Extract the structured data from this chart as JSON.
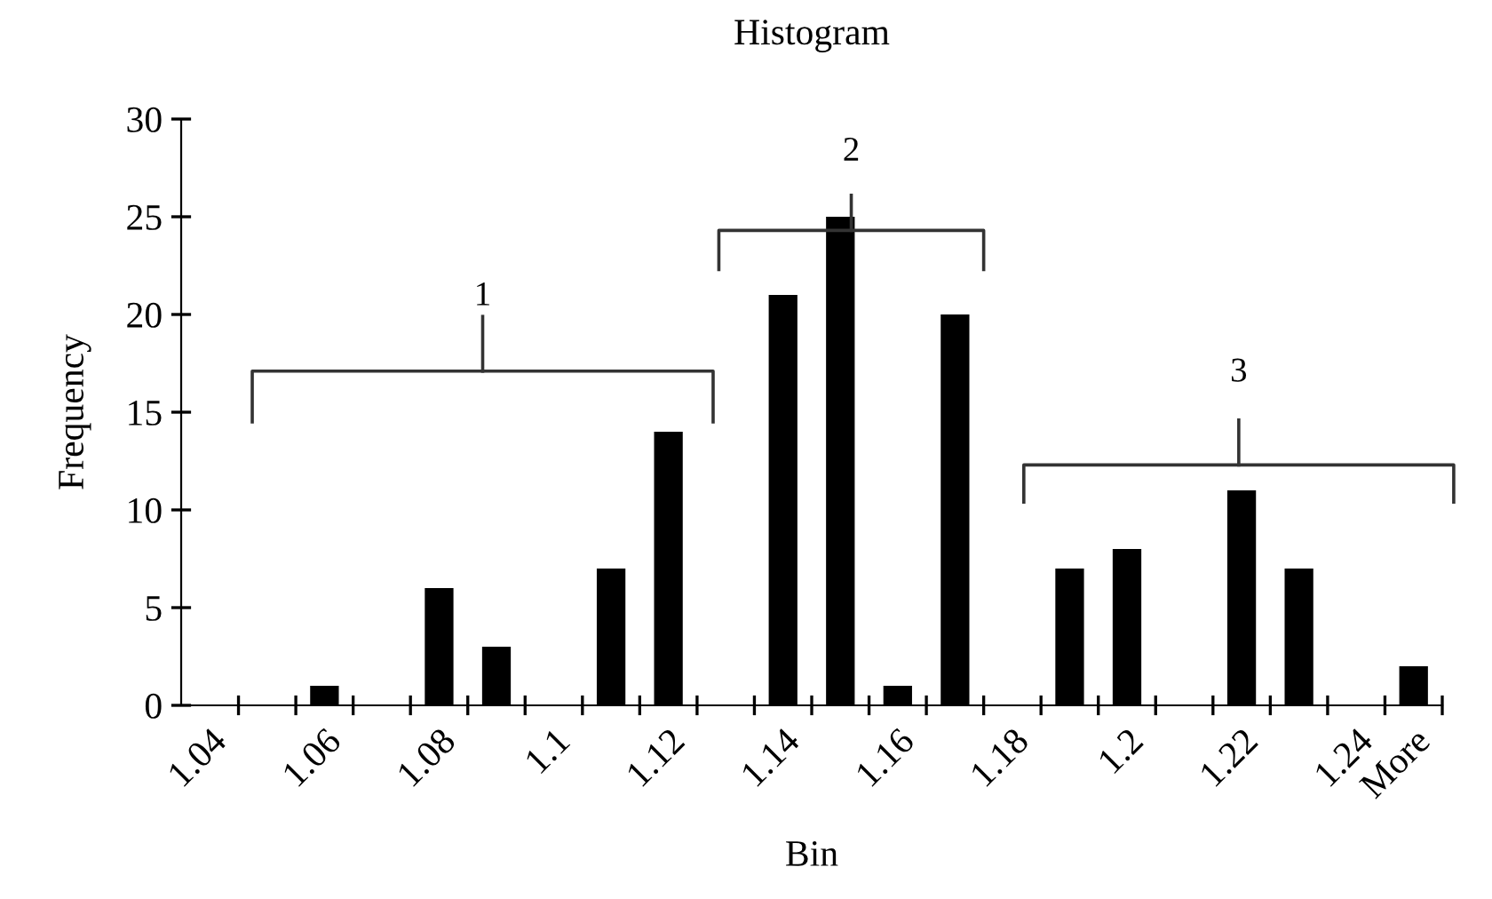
{
  "chart_data": {
    "type": "bar",
    "title": "Histogram",
    "xlabel": "Bin",
    "ylabel": "Frequency",
    "categories": [
      "1.04",
      null,
      "1.06",
      null,
      "1.08",
      null,
      "1.1",
      null,
      "1.12",
      null,
      "1.14",
      null,
      "1.16",
      null,
      "1.18",
      null,
      "1.2",
      null,
      "1.22",
      null,
      "1.24",
      "More"
    ],
    "values": [
      0,
      0,
      1,
      0,
      6,
      3,
      0,
      7,
      14,
      0,
      21,
      25,
      1,
      20,
      0,
      7,
      8,
      0,
      11,
      7,
      0,
      2
    ],
    "color": "#000000",
    "ylim": [
      0,
      30
    ],
    "yticks": [
      0,
      5,
      10,
      15,
      20,
      25,
      30
    ],
    "grid": false,
    "legend": false,
    "annotations": [
      "1",
      "2",
      "3"
    ]
  }
}
